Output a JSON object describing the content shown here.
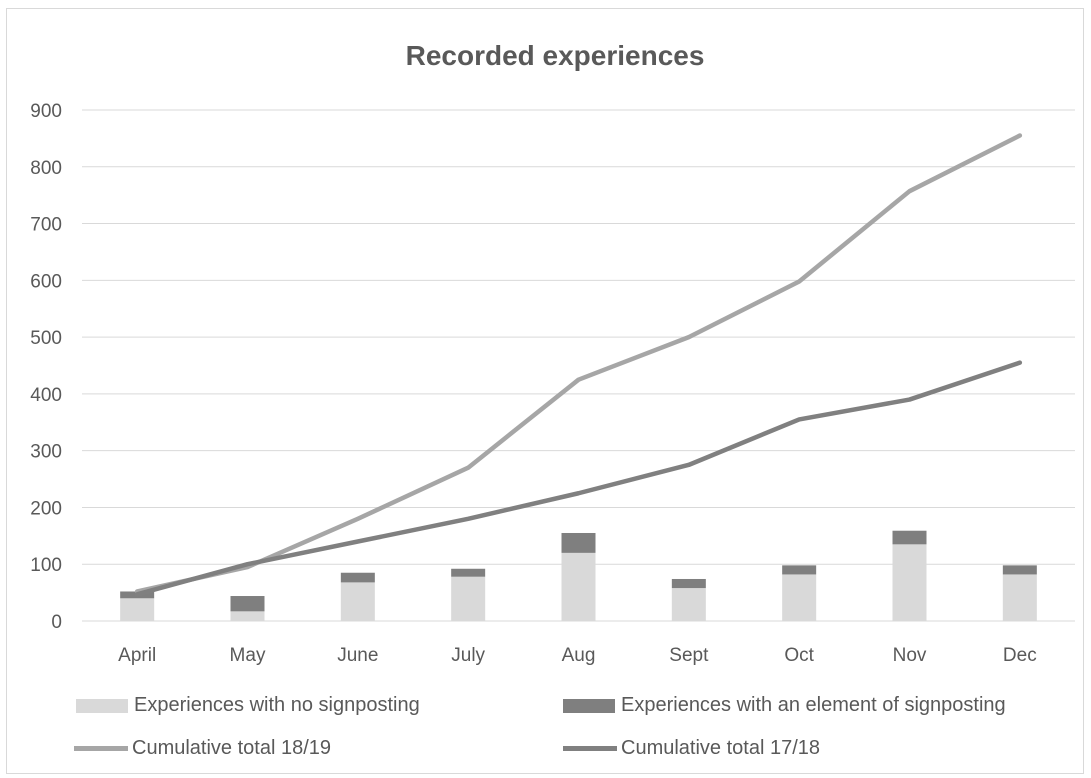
{
  "chart_data": {
    "type": "bar",
    "title": "Recorded experiences",
    "categories": [
      "April",
      "May",
      "June",
      "July",
      "Aug",
      "Sept",
      "Oct",
      "Nov",
      "Dec"
    ],
    "ylim": [
      0,
      900
    ],
    "yticks": [
      0,
      100,
      200,
      300,
      400,
      500,
      600,
      700,
      800,
      900
    ],
    "grid": true,
    "legend_position": "bottom",
    "series": [
      {
        "name": "Experiences with no signposting",
        "kind": "stacked-bar",
        "color": "#d9d9d9",
        "values": [
          40,
          17,
          68,
          78,
          120,
          58,
          82,
          135,
          82
        ]
      },
      {
        "name": "Experiences with an element of signposting",
        "kind": "stacked-bar",
        "color": "#7f7f7f",
        "values": [
          12,
          27,
          17,
          14,
          35,
          16,
          16,
          24,
          16
        ]
      },
      {
        "name": "Cumulative total 18/19",
        "kind": "line",
        "color": "#a6a6a6",
        "values": [
          52,
          95,
          180,
          270,
          425,
          500,
          598,
          757,
          855
        ]
      },
      {
        "name": "Cumulative total 17/18",
        "kind": "line",
        "color": "#808080",
        "values": [
          47,
          100,
          140,
          180,
          225,
          275,
          355,
          390,
          455
        ]
      }
    ]
  }
}
